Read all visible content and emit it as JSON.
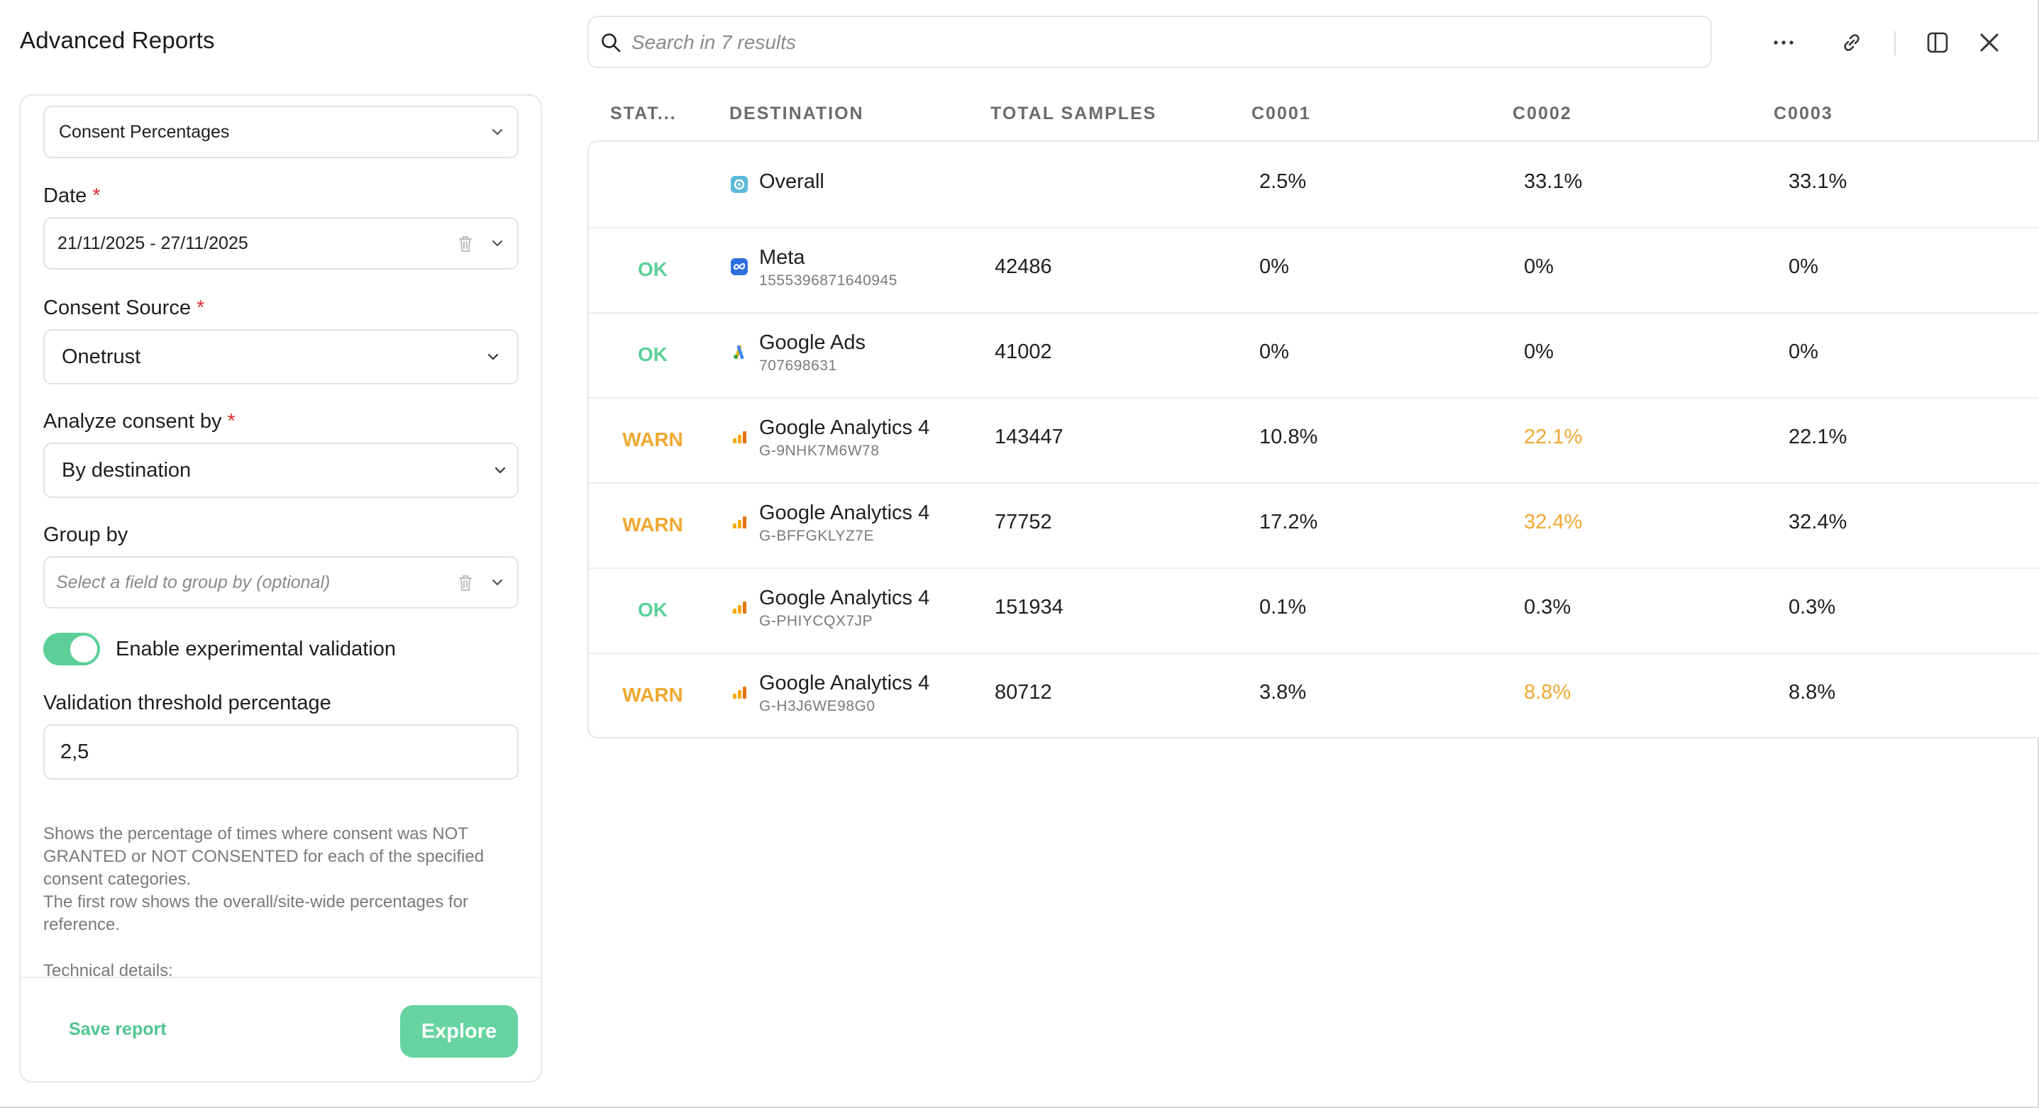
{
  "app": {
    "title": "Advanced Reports"
  },
  "search": {
    "placeholder": "Search in 7 results"
  },
  "toolbar": {
    "icons": [
      "more-icon",
      "link-icon",
      "panel-icon",
      "close-icon"
    ]
  },
  "form": {
    "report_type": "Consent Percentages",
    "date": {
      "label": "Date",
      "required_mark": "*",
      "value": "21/11/2025 - 27/11/2025"
    },
    "consent_source": {
      "label": "Consent Source",
      "required_mark": "*",
      "value": "Onetrust"
    },
    "analyze_by": {
      "label": "Analyze consent by",
      "required_mark": "*",
      "value": "By destination"
    },
    "group_by": {
      "label": "Group by",
      "placeholder": "Select a field to group by (optional)"
    },
    "experimental_validation": {
      "label": "Enable experimental validation",
      "enabled": true
    },
    "threshold": {
      "label": "Validation threshold percentage",
      "value": "2,5"
    },
    "description_1": "Shows the percentage of times where consent was NOT GRANTED or NOT CONSENTED for each of the specified consent categories.",
    "description_2": "The first row shows the overall/site-wide percentages for reference.",
    "technical_details": "Technical details:",
    "save_label": "Save report",
    "explore_label": "Explore"
  },
  "table": {
    "headers": {
      "status": "STAT...",
      "destination": "DESTINATION",
      "total": "TOTAL SAMPLES",
      "c1": "C0001",
      "c2": "C0002",
      "c3": "C0003"
    },
    "rows": [
      {
        "status": "",
        "icon": "overall-icon",
        "name": "Overall",
        "id": "",
        "total": "",
        "c1": "2.5%",
        "c2": "33.1%",
        "c3": "33.1%",
        "c2_warn": false
      },
      {
        "status": "OK",
        "icon": "meta-icon",
        "name": "Meta",
        "id": "1555396871640945",
        "total": "42486",
        "c1": "0%",
        "c2": "0%",
        "c3": "0%",
        "c2_warn": false
      },
      {
        "status": "OK",
        "icon": "google-ads-icon",
        "name": "Google Ads",
        "id": "707698631",
        "total": "41002",
        "c1": "0%",
        "c2": "0%",
        "c3": "0%",
        "c2_warn": false
      },
      {
        "status": "WARN",
        "icon": "google-analytics-icon",
        "name": "Google Analytics 4",
        "id": "G-9NHK7M6W78",
        "total": "143447",
        "c1": "10.8%",
        "c2": "22.1%",
        "c3": "22.1%",
        "c2_warn": true
      },
      {
        "status": "WARN",
        "icon": "google-analytics-icon",
        "name": "Google Analytics 4",
        "id": "G-BFFGKLYZ7E",
        "total": "77752",
        "c1": "17.2%",
        "c2": "32.4%",
        "c3": "32.4%",
        "c2_warn": true
      },
      {
        "status": "OK",
        "icon": "google-analytics-icon",
        "name": "Google Analytics 4",
        "id": "G-PHIYCQX7JP",
        "total": "151934",
        "c1": "0.1%",
        "c2": "0.3%",
        "c3": "0.3%",
        "c2_warn": false
      },
      {
        "status": "WARN",
        "icon": "google-analytics-icon",
        "name": "Google Analytics 4",
        "id": "G-H3J6WE98G0",
        "total": "80712",
        "c1": "3.8%",
        "c2": "8.8%",
        "c3": "8.8%",
        "c2_warn": true
      }
    ]
  },
  "colors": {
    "accent": "#5ccf98",
    "warn": "#f0a830",
    "required": "#e03131"
  }
}
